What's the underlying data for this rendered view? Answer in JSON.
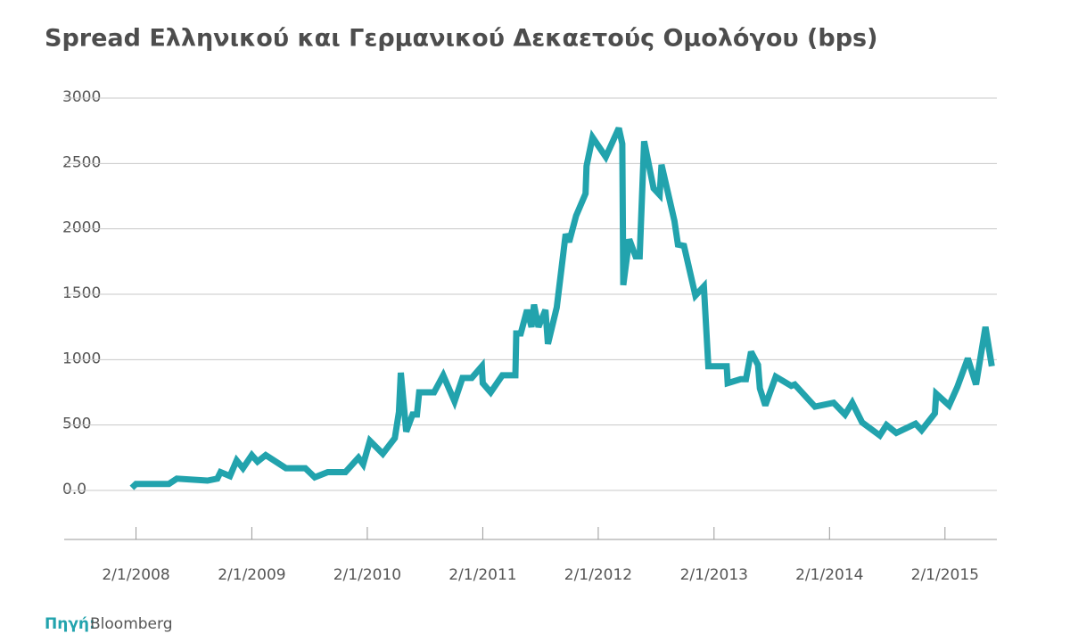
{
  "chart_data": {
    "type": "line",
    "title": "Spread Ελληνικού και Γερμανικού Δεκαετούς Ομολόγου (bps)",
    "source_label": "Πηγή:",
    "source": "Bloomberg",
    "grid": true,
    "xlim": [
      "2007-05-20",
      "2015-06-15"
    ],
    "xticks": [
      {
        "value": "2008-01-02",
        "label": "2/1/2008"
      },
      {
        "value": "2009-01-02",
        "label": "2/1/2009"
      },
      {
        "value": "2010-01-02",
        "label": "2/1/2010"
      },
      {
        "value": "2011-01-02",
        "label": "2/1/2011"
      },
      {
        "value": "2012-01-02",
        "label": "2/1/2012"
      },
      {
        "value": "2013-01-02",
        "label": "2/1/2013"
      },
      {
        "value": "2014-01-02",
        "label": "2/1/2014"
      },
      {
        "value": "2015-01-02",
        "label": "2/1/2015"
      }
    ],
    "ylim": [
      -375,
      3000
    ],
    "yticks": [
      {
        "value": 0,
        "label": "0.0"
      },
      500,
      1000,
      1500,
      2000,
      2500,
      3000
    ],
    "x": [
      "2007-12-20",
      "2008-01-02",
      "2008-04-15",
      "2008-05-10",
      "2008-08-15",
      "2008-09-15",
      "2008-09-25",
      "2008-10-25",
      "2008-11-15",
      "2008-12-05",
      "2009-01-02",
      "2009-01-20",
      "2009-02-15",
      "2009-04-20",
      "2009-06-20",
      "2009-07-20",
      "2009-08-30",
      "2009-10-25",
      "2009-12-05",
      "2009-12-20",
      "2010-01-10",
      "2010-02-20",
      "2010-03-30",
      "2010-04-12",
      "2010-04-18",
      "2010-05-05",
      "2010-05-25",
      "2010-06-08",
      "2010-06-15",
      "2010-08-01",
      "2010-08-30",
      "2010-10-05",
      "2010-10-30",
      "2010-11-28",
      "2010-12-30",
      "2011-01-02",
      "2011-01-27",
      "2011-03-05",
      "2011-04-15",
      "2011-04-18",
      "2011-05-02",
      "2011-05-22",
      "2011-06-05",
      "2011-06-13",
      "2011-06-27",
      "2011-07-19",
      "2011-07-27",
      "2011-08-24",
      "2011-09-21",
      "2011-10-02",
      "2011-10-24",
      "2011-11-23",
      "2011-11-26",
      "2011-12-15",
      "2012-01-26",
      "2012-03-07",
      "2012-03-18",
      "2012-03-21",
      "2012-04-09",
      "2012-04-29",
      "2012-05-12",
      "2012-05-26",
      "2012-06-25",
      "2012-07-14",
      "2012-07-20",
      "2012-08-30",
      "2012-09-10",
      "2012-09-29",
      "2012-11-04",
      "2012-12-01",
      "2012-12-15",
      "2013-02-11",
      "2013-02-14",
      "2013-03-27",
      "2013-04-13",
      "2013-04-29",
      "2013-05-21",
      "2013-05-27",
      "2013-06-13",
      "2013-07-16",
      "2013-09-03",
      "2013-09-14",
      "2013-11-17",
      "2014-01-15",
      "2014-02-20",
      "2014-03-15",
      "2014-04-15",
      "2014-06-10",
      "2014-07-01",
      "2014-08-01",
      "2014-10-01",
      "2014-10-20",
      "2014-12-01",
      "2014-12-05",
      "2015-01-15",
      "2015-02-10",
      "2015-03-15",
      "2015-04-10",
      "2015-05-10",
      "2015-05-30"
    ],
    "series": [
      {
        "name": "Spread",
        "color": "#22a3ad",
        "values": [
          20,
          50,
          50,
          90,
          75,
          90,
          140,
          110,
          230,
          170,
          270,
          220,
          270,
          170,
          170,
          100,
          140,
          140,
          250,
          200,
          380,
          280,
          400,
          600,
          900,
          450,
          580,
          580,
          750,
          750,
          880,
          680,
          860,
          860,
          950,
          820,
          750,
          880,
          880,
          1200,
          1200,
          1380,
          1250,
          1420,
          1250,
          1380,
          1120,
          1400,
          1960,
          1900,
          2100,
          2270,
          2480,
          2700,
          2550,
          2770,
          2650,
          1570,
          1920,
          1790,
          1790,
          2670,
          2310,
          2260,
          2490,
          2060,
          1880,
          1870,
          1490,
          1560,
          950,
          950,
          820,
          850,
          850,
          1060,
          960,
          780,
          650,
          870,
          800,
          810,
          640,
          670,
          580,
          670,
          520,
          420,
          500,
          440,
          510,
          460,
          590,
          740,
          650,
          790,
          1010,
          810,
          1250,
          950
        ]
      }
    ]
  }
}
